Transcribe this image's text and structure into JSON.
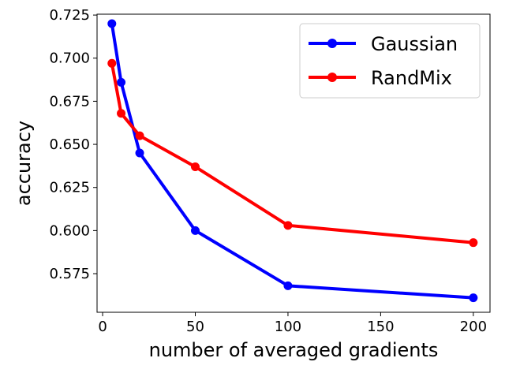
{
  "chart_data": {
    "type": "line",
    "title": "",
    "xlabel": "number of averaged gradients",
    "ylabel": "accuracy",
    "xlim": [
      -3,
      209
    ],
    "ylim": [
      0.5526,
      0.7255
    ],
    "xticks": [
      0,
      50,
      100,
      150,
      200
    ],
    "xtick_labels": [
      "0",
      "50",
      "100",
      "150",
      "200"
    ],
    "yticks": [
      0.575,
      0.6,
      0.625,
      0.65,
      0.675,
      0.7,
      0.725
    ],
    "ytick_labels": [
      "0.575",
      "0.600",
      "0.625",
      "0.650",
      "0.675",
      "0.700",
      "0.725"
    ],
    "grid": false,
    "legend": {
      "position": "top-right"
    },
    "x": [
      5,
      10,
      20,
      50,
      100,
      200
    ],
    "series": [
      {
        "name": "Gaussian",
        "color": "#0000ff",
        "values": [
          0.72,
          0.686,
          0.645,
          0.6,
          0.568,
          0.561
        ]
      },
      {
        "name": "RandMix",
        "color": "#ff0000",
        "values": [
          0.697,
          0.668,
          0.655,
          0.637,
          0.603,
          0.593
        ]
      }
    ]
  }
}
